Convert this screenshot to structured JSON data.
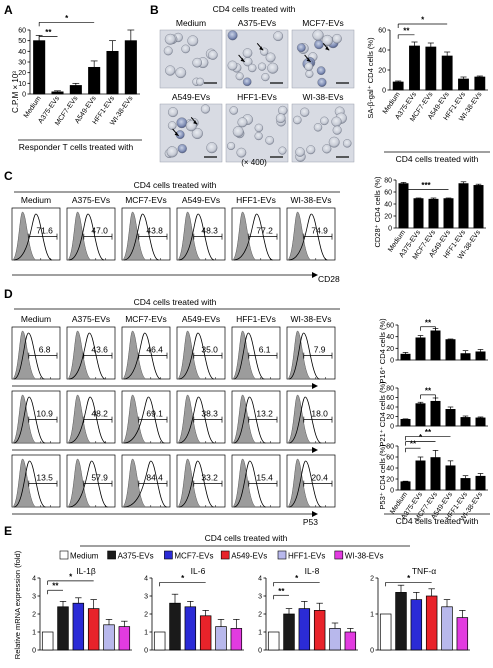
{
  "panels": {
    "A": {
      "letter": "A",
      "ylabel": "C.P.M × 10³",
      "xlabel": "Responder T cells treated with",
      "sig": [
        "**",
        "*"
      ]
    },
    "B": {
      "letter": "B",
      "header": "CD4 cells treated with",
      "images_top": [
        "Medium",
        "A375-EVs",
        "MCF7-EVs"
      ],
      "images_bottom": [
        "A549-EVs",
        "HFF1-EVs",
        "WI-38-EVs"
      ],
      "magnification": "(× 400)",
      "ylabel": "SA-β-gal⁺ CD4 cells (%)",
      "xlabel": "CD4 cells treated with",
      "sig": [
        "**",
        "*"
      ]
    },
    "C": {
      "letter": "C",
      "header": "CD4 cells treated with",
      "hist_labels": [
        "Medium",
        "A375-EVs",
        "MCF7-EVs",
        "A549-EVs",
        "HFF1-EVs",
        "WI-38-EVs"
      ],
      "hist_values": [
        "71.6",
        "47.0",
        "43.8",
        "48.3",
        "77.2",
        "74.9"
      ],
      "marker": "CD28",
      "ylabel": "CD28⁺ CD4 cells (%)",
      "sig": [
        "***"
      ]
    },
    "D": {
      "letter": "D",
      "header": "CD4 cells treated with",
      "hist_labels": [
        "Medium",
        "A375-EVs",
        "MCF7-EVs",
        "A549-EVs",
        "HFF1-EVs",
        "WI-38-EVs"
      ],
      "rows": [
        {
          "marker": "P16",
          "values": [
            "6.8",
            "43.6",
            "46.4",
            "35.0",
            "6.1",
            "7.9"
          ]
        },
        {
          "marker": "P21",
          "values": [
            "10.9",
            "48.2",
            "69.1",
            "38.3",
            "13.2",
            "18.0"
          ]
        },
        {
          "marker": "P53",
          "values": [
            "13.5",
            "57.9",
            "84.4",
            "33.2",
            "15.4",
            "20.4"
          ]
        }
      ],
      "ylabel_p16": "P16⁺ CD4 cells (%)",
      "ylabel_p21": "P21⁺ CD4 cells (%)",
      "ylabel_p53": "P53⁺ CD4 cells (%)",
      "xlabel": "CD4 cells treated with",
      "sig_p16": [
        "**"
      ],
      "sig_p21": [
        "**"
      ],
      "sig_p53": [
        "**",
        "*",
        "**"
      ]
    },
    "E": {
      "letter": "E",
      "header": "CD4 cells treated with",
      "ylabel": "Relative mRNA expression (fold)",
      "sig_il1b": [
        "**",
        "*"
      ],
      "sig_il6": [
        "*"
      ],
      "sig_il8": [
        "**",
        "*"
      ],
      "sig_tnfa": [
        "*"
      ]
    }
  },
  "legend": [
    {
      "label": "Medium",
      "color": "#ffffff"
    },
    {
      "label": "A375-EVs",
      "color": "#1a1a1a"
    },
    {
      "label": "MCF7-EVs",
      "color": "#2b2bd6"
    },
    {
      "label": "A549-EVs",
      "color": "#e8232a"
    },
    {
      "label": "HFF1-EVs",
      "color": "#b8b8ec"
    },
    {
      "label": "WI-38-EVs",
      "color": "#e23be0"
    }
  ],
  "chart_data": [
    {
      "type": "bar",
      "panel": "A",
      "categories": [
        "Medium",
        "A375-EVs",
        "MCF7-EVs",
        "A549-EVs",
        "HFF1-EVs",
        "WI-38-EVs"
      ],
      "values": [
        50,
        2,
        8,
        25,
        40,
        50
      ],
      "errors": [
        5,
        1,
        2,
        6,
        10,
        10
      ],
      "ylabel": "C.P.M × 10³",
      "xlabel": "Responder T cells treated with",
      "ylim": [
        0,
        60
      ],
      "yticks": [
        0,
        10,
        20,
        30,
        40,
        50,
        60
      ]
    },
    {
      "type": "bar",
      "panel": "B",
      "categories": [
        "Medium",
        "A375-EVs",
        "MCF7-EVs",
        "A549-EVs",
        "HFF1-EVs",
        "WI-38-EVs"
      ],
      "values": [
        8,
        44,
        43,
        34,
        11,
        13
      ],
      "errors": [
        1,
        4,
        4,
        4,
        2,
        1
      ],
      "ylabel": "SA-β-gal⁺ CD4 cells (%)",
      "xlabel": "CD4 cells treated with",
      "ylim": [
        0,
        60
      ],
      "yticks": [
        0,
        20,
        40,
        60
      ]
    },
    {
      "type": "bar",
      "panel": "C",
      "categories": [
        "Medium",
        "A375-EVs",
        "MCF7-EVs",
        "A549-EVs",
        "HFF1-EVs",
        "WI-38-EVs"
      ],
      "values": [
        74,
        49,
        48,
        49,
        74,
        71
      ],
      "errors": [
        2,
        1,
        2,
        1,
        3,
        2
      ],
      "ylabel": "CD28⁺ CD4 cells (%)",
      "ylim": [
        0,
        80
      ],
      "yticks": [
        0,
        20,
        40,
        60,
        80
      ]
    },
    {
      "type": "bar",
      "panel": "D-P16",
      "categories": [
        "Medium",
        "A375-EVs",
        "MCF7-EVs",
        "A549-EVs",
        "HFF1-EVs",
        "WI-38-EVs"
      ],
      "values": [
        10,
        38,
        50,
        35,
        11,
        14
      ],
      "errors": [
        3,
        4,
        4,
        1,
        5,
        4
      ],
      "ylabel": "P16⁺ CD4 cells (%)",
      "ylim": [
        0,
        60
      ],
      "yticks": [
        0,
        20,
        40,
        60
      ]
    },
    {
      "type": "bar",
      "panel": "D-P21",
      "categories": [
        "Medium",
        "A375-EVs",
        "MCF7-EVs",
        "A549-EVs",
        "HFF1-EVs",
        "WI-38-EVs"
      ],
      "values": [
        14,
        47,
        52,
        35,
        18,
        17
      ],
      "errors": [
        1,
        3,
        7,
        5,
        3,
        2
      ],
      "ylabel": "P21⁺ CD4 cells (%)",
      "ylim": [
        0,
        80
      ],
      "yticks": [
        0,
        20,
        40,
        60,
        80
      ]
    },
    {
      "type": "bar",
      "panel": "D-P53",
      "categories": [
        "Medium",
        "A375-EVs",
        "MCF7-EVs",
        "A549-EVs",
        "HFF1-EVs",
        "WI-38-EVs"
      ],
      "values": [
        15,
        53,
        59,
        44,
        21,
        25
      ],
      "errors": [
        1,
        7,
        13,
        9,
        5,
        5
      ],
      "ylabel": "P53⁺ CD4 cells (%)",
      "xlabel": "CD4 cells treated with",
      "ylim": [
        0,
        80
      ],
      "yticks": [
        0,
        20,
        40,
        60,
        80
      ]
    },
    {
      "type": "bar",
      "panel": "E-IL-1β",
      "title": "IL-1β",
      "series": [
        {
          "name": "Medium",
          "values": [
            1
          ]
        },
        {
          "name": "A375-EVs",
          "values": [
            2.4
          ]
        },
        {
          "name": "MCF7-EVs",
          "values": [
            2.6
          ]
        },
        {
          "name": "A549-EVs",
          "values": [
            2.3
          ]
        },
        {
          "name": "HFF1-EVs",
          "values": [
            1.4
          ]
        },
        {
          "name": "WI-38-EVs",
          "values": [
            1.3
          ]
        }
      ],
      "errors": [
        0,
        0.3,
        0.3,
        0.5,
        0.3,
        0.3
      ],
      "ylim": [
        0,
        4
      ],
      "yticks": [
        0,
        1,
        2,
        3,
        4
      ]
    },
    {
      "type": "bar",
      "panel": "E-IL-6",
      "title": "IL-6",
      "series": [
        {
          "name": "Medium",
          "values": [
            1
          ]
        },
        {
          "name": "A375-EVs",
          "values": [
            2.6
          ]
        },
        {
          "name": "MCF7-EVs",
          "values": [
            2.4
          ]
        },
        {
          "name": "A549-EVs",
          "values": [
            1.9
          ]
        },
        {
          "name": "HFF1-EVs",
          "values": [
            1.3
          ]
        },
        {
          "name": "WI-38-EVs",
          "values": [
            1.2
          ]
        }
      ],
      "errors": [
        0,
        0.5,
        0.3,
        0.3,
        0.4,
        0.5
      ],
      "ylim": [
        0,
        4
      ],
      "yticks": [
        0,
        1,
        2,
        3,
        4
      ]
    },
    {
      "type": "bar",
      "panel": "E-IL-8",
      "title": "IL-8",
      "series": [
        {
          "name": "Medium",
          "values": [
            1
          ]
        },
        {
          "name": "A375-EVs",
          "values": [
            2.0
          ]
        },
        {
          "name": "MCF7-EVs",
          "values": [
            2.3
          ]
        },
        {
          "name": "A549-EVs",
          "values": [
            2.2
          ]
        },
        {
          "name": "HFF1-EVs",
          "values": [
            1.2
          ]
        },
        {
          "name": "WI-38-EVs",
          "values": [
            1.0
          ]
        }
      ],
      "errors": [
        0,
        0.3,
        0.4,
        0.4,
        0.3,
        0.2
      ],
      "ylim": [
        0,
        4
      ],
      "yticks": [
        0,
        1,
        2,
        3,
        4
      ]
    },
    {
      "type": "bar",
      "panel": "E-TNF-α",
      "title": "TNF-α",
      "series": [
        {
          "name": "Medium",
          "values": [
            1
          ]
        },
        {
          "name": "A375-EVs",
          "values": [
            1.6
          ]
        },
        {
          "name": "MCF7-EVs",
          "values": [
            1.4
          ]
        },
        {
          "name": "A549-EVs",
          "values": [
            1.5
          ]
        },
        {
          "name": "HFF1-EVs",
          "values": [
            1.2
          ]
        },
        {
          "name": "WI-38-EVs",
          "values": [
            0.9
          ]
        }
      ],
      "errors": [
        0,
        0.2,
        0.2,
        0.2,
        0.2,
        0.2
      ],
      "ylim": [
        0,
        2
      ],
      "yticks": [
        0,
        1,
        2
      ]
    }
  ]
}
